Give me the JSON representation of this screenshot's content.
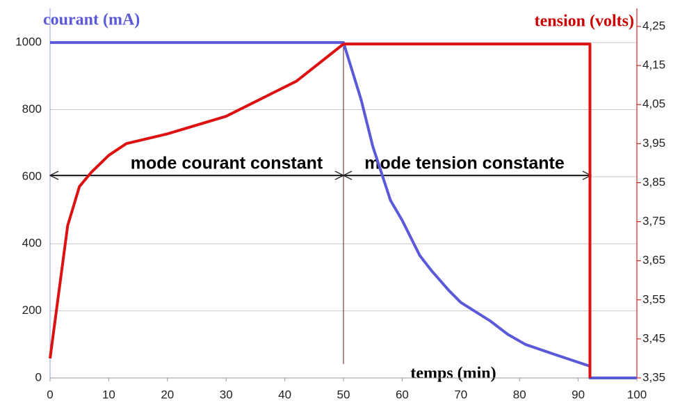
{
  "chart_data": {
    "type": "line",
    "y_label": "courant (mA)",
    "y2_label": "tension (volts)",
    "x_label": "temps (min)",
    "annotations": [
      "mode courant constant",
      "mode tension constante"
    ],
    "xlim": [
      0,
      100
    ],
    "xticks": [
      0,
      10,
      20,
      30,
      40,
      50,
      60,
      70,
      80,
      90,
      100
    ],
    "ylim": [
      0,
      1048
    ],
    "yticks": [
      0,
      200,
      400,
      600,
      800,
      1000
    ],
    "y2lim": [
      3.35,
      4.25
    ],
    "y2ticks": [
      {
        "value": 3.35,
        "label": "3,35"
      },
      {
        "value": 3.45,
        "label": "3,45"
      },
      {
        "value": 3.55,
        "label": "3,55"
      },
      {
        "value": 3.65,
        "label": "3,65"
      },
      {
        "value": 3.75,
        "label": "3,75"
      },
      {
        "value": 3.85,
        "label": "3,85"
      },
      {
        "value": 3.95,
        "label": "3,95"
      },
      {
        "value": 4.05,
        "label": "4,05"
      },
      {
        "value": 4.15,
        "label": "4,15"
      },
      {
        "value": 4.25,
        "label": "4,25"
      }
    ],
    "grid": true,
    "series": [
      {
        "color": "#5a5ad8",
        "axis": "y",
        "x": [
          0,
          50,
          53,
          55,
          58,
          60,
          63,
          65,
          68,
          70,
          75,
          78,
          81,
          86,
          92,
          92,
          100
        ],
        "values": [
          1000,
          1000,
          830,
          690,
          530,
          470,
          365,
          320,
          260,
          225,
          170,
          130,
          100,
          70,
          35,
          0,
          0
        ]
      },
      {
        "color": "#dd1111",
        "axis": "y2",
        "x": [
          0,
          3,
          5,
          7,
          10,
          13,
          20,
          30,
          38,
          42,
          50,
          92,
          92
        ],
        "values": [
          3.4,
          3.74,
          3.84,
          3.876,
          3.92,
          3.95,
          3.975,
          4.02,
          4.08,
          4.11,
          4.205,
          4.205,
          3.35
        ]
      }
    ]
  }
}
